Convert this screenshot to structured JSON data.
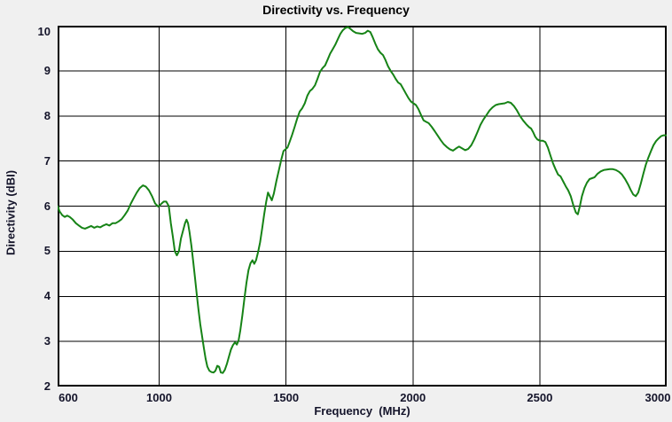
{
  "figure": {
    "title": "Directivity vs. Frequency",
    "background": "#f0f0f0",
    "text_color": "#14142a",
    "title_color": "#000000"
  },
  "chart_data": {
    "type": "line",
    "title": "Directivity vs. Frequency",
    "xlabel": "Frequency  (MHz)",
    "ylabel": "Directivity (dBI)",
    "xlim": [
      600,
      3000
    ],
    "ylim": [
      2,
      10
    ],
    "x_ticks": [
      600,
      1000,
      1500,
      2000,
      2500,
      3000
    ],
    "y_ticks": [
      2,
      3,
      4,
      5,
      6,
      7,
      8,
      9,
      10
    ],
    "grid": true,
    "legend_position": "none",
    "line_color": "#168316",
    "grid_color": "#000000",
    "plot_background": "#ffffff",
    "series": [
      {
        "name": "Directivity (dBI)",
        "points": [
          [
            600,
            6.0
          ],
          [
            608,
            5.88
          ],
          [
            618,
            5.8
          ],
          [
            628,
            5.76
          ],
          [
            638,
            5.79
          ],
          [
            648,
            5.76
          ],
          [
            660,
            5.7
          ],
          [
            672,
            5.62
          ],
          [
            684,
            5.57
          ],
          [
            696,
            5.52
          ],
          [
            708,
            5.5
          ],
          [
            720,
            5.53
          ],
          [
            732,
            5.56
          ],
          [
            744,
            5.52
          ],
          [
            756,
            5.55
          ],
          [
            768,
            5.53
          ],
          [
            780,
            5.57
          ],
          [
            792,
            5.6
          ],
          [
            804,
            5.57
          ],
          [
            816,
            5.62
          ],
          [
            828,
            5.62
          ],
          [
            840,
            5.66
          ],
          [
            852,
            5.71
          ],
          [
            864,
            5.8
          ],
          [
            876,
            5.9
          ],
          [
            888,
            6.05
          ],
          [
            900,
            6.18
          ],
          [
            912,
            6.3
          ],
          [
            924,
            6.4
          ],
          [
            936,
            6.46
          ],
          [
            948,
            6.43
          ],
          [
            960,
            6.35
          ],
          [
            972,
            6.22
          ],
          [
            984,
            6.06
          ],
          [
            996,
            5.99
          ],
          [
            1008,
            6.05
          ],
          [
            1018,
            6.1
          ],
          [
            1028,
            6.1
          ],
          [
            1038,
            6.0
          ],
          [
            1046,
            5.62
          ],
          [
            1054,
            5.32
          ],
          [
            1062,
            5.0
          ],
          [
            1070,
            4.91
          ],
          [
            1078,
            5.0
          ],
          [
            1086,
            5.28
          ],
          [
            1094,
            5.45
          ],
          [
            1102,
            5.62
          ],
          [
            1108,
            5.7
          ],
          [
            1114,
            5.62
          ],
          [
            1120,
            5.42
          ],
          [
            1127,
            5.12
          ],
          [
            1134,
            4.78
          ],
          [
            1141,
            4.42
          ],
          [
            1148,
            4.05
          ],
          [
            1155,
            3.7
          ],
          [
            1162,
            3.38
          ],
          [
            1169,
            3.12
          ],
          [
            1176,
            2.86
          ],
          [
            1183,
            2.62
          ],
          [
            1190,
            2.44
          ],
          [
            1198,
            2.35
          ],
          [
            1206,
            2.32
          ],
          [
            1214,
            2.31
          ],
          [
            1222,
            2.35
          ],
          [
            1229,
            2.46
          ],
          [
            1236,
            2.44
          ],
          [
            1243,
            2.31
          ],
          [
            1251,
            2.3
          ],
          [
            1259,
            2.37
          ],
          [
            1267,
            2.5
          ],
          [
            1275,
            2.66
          ],
          [
            1283,
            2.82
          ],
          [
            1291,
            2.92
          ],
          [
            1299,
            2.98
          ],
          [
            1306,
            2.93
          ],
          [
            1313,
            3.02
          ],
          [
            1320,
            3.25
          ],
          [
            1328,
            3.58
          ],
          [
            1336,
            3.95
          ],
          [
            1344,
            4.3
          ],
          [
            1352,
            4.58
          ],
          [
            1360,
            4.73
          ],
          [
            1368,
            4.8
          ],
          [
            1375,
            4.72
          ],
          [
            1382,
            4.8
          ],
          [
            1390,
            4.98
          ],
          [
            1398,
            5.2
          ],
          [
            1406,
            5.5
          ],
          [
            1414,
            5.82
          ],
          [
            1422,
            6.1
          ],
          [
            1429,
            6.3
          ],
          [
            1436,
            6.22
          ],
          [
            1444,
            6.13
          ],
          [
            1452,
            6.28
          ],
          [
            1462,
            6.55
          ],
          [
            1472,
            6.8
          ],
          [
            1482,
            7.05
          ],
          [
            1490,
            7.22
          ],
          [
            1498,
            7.26
          ],
          [
            1506,
            7.3
          ],
          [
            1514,
            7.42
          ],
          [
            1524,
            7.58
          ],
          [
            1534,
            7.76
          ],
          [
            1544,
            7.94
          ],
          [
            1554,
            8.1
          ],
          [
            1564,
            8.17
          ],
          [
            1574,
            8.28
          ],
          [
            1584,
            8.45
          ],
          [
            1594,
            8.55
          ],
          [
            1604,
            8.6
          ],
          [
            1614,
            8.68
          ],
          [
            1624,
            8.82
          ],
          [
            1634,
            8.98
          ],
          [
            1644,
            9.06
          ],
          [
            1654,
            9.12
          ],
          [
            1664,
            9.25
          ],
          [
            1674,
            9.38
          ],
          [
            1684,
            9.48
          ],
          [
            1694,
            9.58
          ],
          [
            1704,
            9.7
          ],
          [
            1714,
            9.82
          ],
          [
            1724,
            9.9
          ],
          [
            1734,
            9.95
          ],
          [
            1744,
            9.97
          ],
          [
            1754,
            9.93
          ],
          [
            1764,
            9.88
          ],
          [
            1776,
            9.84
          ],
          [
            1788,
            9.83
          ],
          [
            1800,
            9.82
          ],
          [
            1812,
            9.84
          ],
          [
            1822,
            9.89
          ],
          [
            1832,
            9.86
          ],
          [
            1842,
            9.74
          ],
          [
            1852,
            9.6
          ],
          [
            1862,
            9.48
          ],
          [
            1872,
            9.4
          ],
          [
            1882,
            9.35
          ],
          [
            1892,
            9.24
          ],
          [
            1902,
            9.1
          ],
          [
            1912,
            9.0
          ],
          [
            1922,
            8.92
          ],
          [
            1932,
            8.82
          ],
          [
            1942,
            8.74
          ],
          [
            1952,
            8.7
          ],
          [
            1962,
            8.6
          ],
          [
            1972,
            8.5
          ],
          [
            1982,
            8.4
          ],
          [
            1992,
            8.32
          ],
          [
            2002,
            8.28
          ],
          [
            2012,
            8.24
          ],
          [
            2022,
            8.15
          ],
          [
            2032,
            8.02
          ],
          [
            2042,
            7.9
          ],
          [
            2052,
            7.87
          ],
          [
            2062,
            7.84
          ],
          [
            2074,
            7.76
          ],
          [
            2086,
            7.66
          ],
          [
            2098,
            7.56
          ],
          [
            2110,
            7.46
          ],
          [
            2122,
            7.37
          ],
          [
            2134,
            7.31
          ],
          [
            2146,
            7.26
          ],
          [
            2158,
            7.23
          ],
          [
            2170,
            7.28
          ],
          [
            2182,
            7.32
          ],
          [
            2194,
            7.28
          ],
          [
            2206,
            7.24
          ],
          [
            2218,
            7.27
          ],
          [
            2230,
            7.35
          ],
          [
            2242,
            7.48
          ],
          [
            2254,
            7.64
          ],
          [
            2266,
            7.8
          ],
          [
            2278,
            7.92
          ],
          [
            2290,
            8.02
          ],
          [
            2302,
            8.12
          ],
          [
            2314,
            8.19
          ],
          [
            2326,
            8.24
          ],
          [
            2338,
            8.26
          ],
          [
            2350,
            8.27
          ],
          [
            2362,
            8.28
          ],
          [
            2374,
            8.31
          ],
          [
            2386,
            8.29
          ],
          [
            2398,
            8.22
          ],
          [
            2410,
            8.12
          ],
          [
            2422,
            8.0
          ],
          [
            2434,
            7.9
          ],
          [
            2446,
            7.82
          ],
          [
            2458,
            7.75
          ],
          [
            2466,
            7.72
          ],
          [
            2474,
            7.64
          ],
          [
            2482,
            7.54
          ],
          [
            2490,
            7.48
          ],
          [
            2500,
            7.45
          ],
          [
            2512,
            7.45
          ],
          [
            2522,
            7.42
          ],
          [
            2532,
            7.3
          ],
          [
            2542,
            7.12
          ],
          [
            2552,
            6.95
          ],
          [
            2562,
            6.82
          ],
          [
            2572,
            6.7
          ],
          [
            2582,
            6.66
          ],
          [
            2592,
            6.55
          ],
          [
            2602,
            6.44
          ],
          [
            2612,
            6.35
          ],
          [
            2622,
            6.22
          ],
          [
            2632,
            6.02
          ],
          [
            2642,
            5.86
          ],
          [
            2650,
            5.82
          ],
          [
            2658,
            6.0
          ],
          [
            2666,
            6.22
          ],
          [
            2676,
            6.4
          ],
          [
            2686,
            6.52
          ],
          [
            2696,
            6.6
          ],
          [
            2706,
            6.62
          ],
          [
            2716,
            6.64
          ],
          [
            2728,
            6.72
          ],
          [
            2740,
            6.77
          ],
          [
            2752,
            6.8
          ],
          [
            2764,
            6.81
          ],
          [
            2776,
            6.82
          ],
          [
            2788,
            6.82
          ],
          [
            2800,
            6.8
          ],
          [
            2812,
            6.76
          ],
          [
            2824,
            6.7
          ],
          [
            2836,
            6.6
          ],
          [
            2848,
            6.48
          ],
          [
            2858,
            6.36
          ],
          [
            2868,
            6.26
          ],
          [
            2878,
            6.22
          ],
          [
            2888,
            6.3
          ],
          [
            2898,
            6.5
          ],
          [
            2908,
            6.72
          ],
          [
            2918,
            6.92
          ],
          [
            2928,
            7.08
          ],
          [
            2938,
            7.22
          ],
          [
            2948,
            7.35
          ],
          [
            2958,
            7.44
          ],
          [
            2968,
            7.5
          ],
          [
            2978,
            7.55
          ],
          [
            2988,
            7.57
          ],
          [
            3000,
            7.57
          ]
        ]
      }
    ]
  }
}
